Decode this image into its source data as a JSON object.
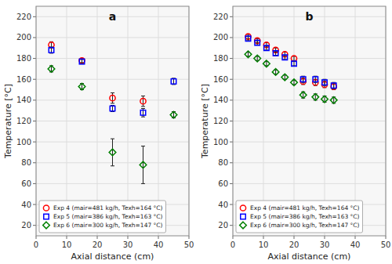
{
  "chart_data": [
    {
      "type": "scatter",
      "title": "a",
      "x_label": "Axial distance (cm)",
      "y_label": "Temperature [°C]",
      "xlim": [
        0,
        50
      ],
      "ylim": [
        10,
        230
      ],
      "xticks": [
        0,
        10,
        20,
        30,
        40,
        50
      ],
      "yticks": [
        20,
        40,
        60,
        80,
        100,
        120,
        140,
        160,
        180,
        200,
        220
      ],
      "grid": true,
      "legend": "lower left",
      "series": [
        {
          "name": "Exp 4 (mair=481 kg/h, Texh=164 °C)",
          "color": "red",
          "marker": "circle",
          "x": [
            5,
            15,
            25,
            35
          ],
          "values": [
            193,
            178,
            142,
            139
          ],
          "errors": [
            3,
            2,
            5,
            5
          ]
        },
        {
          "name": "Exp 5 (mair=386 kg/h, Texh=163 °C)",
          "color": "blue",
          "marker": "square",
          "x": [
            5,
            15,
            25,
            35,
            45
          ],
          "values": [
            188,
            177,
            132,
            128,
            158
          ],
          "errors": [
            3,
            2,
            3,
            4,
            3
          ]
        },
        {
          "name": "Exp 6 (mair=300 kg/h, Texh=147 °C)",
          "color": "green",
          "marker": "diamond",
          "x": [
            5,
            15,
            25,
            35,
            45
          ],
          "values": [
            170,
            153,
            90,
            78,
            126
          ],
          "errors": [
            3,
            3,
            13,
            18,
            3
          ]
        }
      ]
    },
    {
      "type": "scatter",
      "title": "b",
      "x_label": "Axial distance (cm)",
      "y_label": "Temperature [°C]",
      "xlim": [
        0,
        50
      ],
      "ylim": [
        10,
        230
      ],
      "xticks": [
        0,
        10,
        20,
        30,
        40,
        50
      ],
      "yticks": [
        20,
        40,
        60,
        80,
        100,
        120,
        140,
        160,
        180,
        200,
        220
      ],
      "grid": true,
      "legend": "lower left",
      "series": [
        {
          "name": "Exp 4 (mair=481 kg/h, Texh=164 °C)",
          "color": "red",
          "marker": "circle",
          "x": [
            5,
            8,
            11,
            14,
            17,
            20,
            23,
            27,
            30,
            33
          ],
          "values": [
            201,
            197,
            193,
            188,
            184,
            180,
            158,
            157,
            155,
            153
          ],
          "errors": [
            2,
            2,
            2,
            2,
            2,
            2,
            3,
            3,
            3,
            3
          ]
        },
        {
          "name": "Exp 5 (mair=386 kg/h, Texh=163 °C)",
          "color": "blue",
          "marker": "square",
          "x": [
            5,
            8,
            11,
            14,
            17,
            20,
            23,
            27,
            30,
            33
          ],
          "values": [
            199,
            195,
            190,
            185,
            181,
            175,
            160,
            160,
            157,
            154
          ],
          "errors": [
            2,
            2,
            2,
            2,
            2,
            2,
            3,
            3,
            3,
            3
          ]
        },
        {
          "name": "Exp 6 (mair=300 kg/h, Texh=147 °C)",
          "color": "green",
          "marker": "diamond",
          "x": [
            5,
            8,
            11,
            14,
            17,
            20,
            23,
            27,
            30,
            33
          ],
          "values": [
            184,
            180,
            175,
            167,
            162,
            157,
            145,
            143,
            141,
            140
          ],
          "errors": [
            2,
            2,
            2,
            2,
            2,
            2,
            3,
            3,
            3,
            3
          ]
        }
      ]
    }
  ]
}
